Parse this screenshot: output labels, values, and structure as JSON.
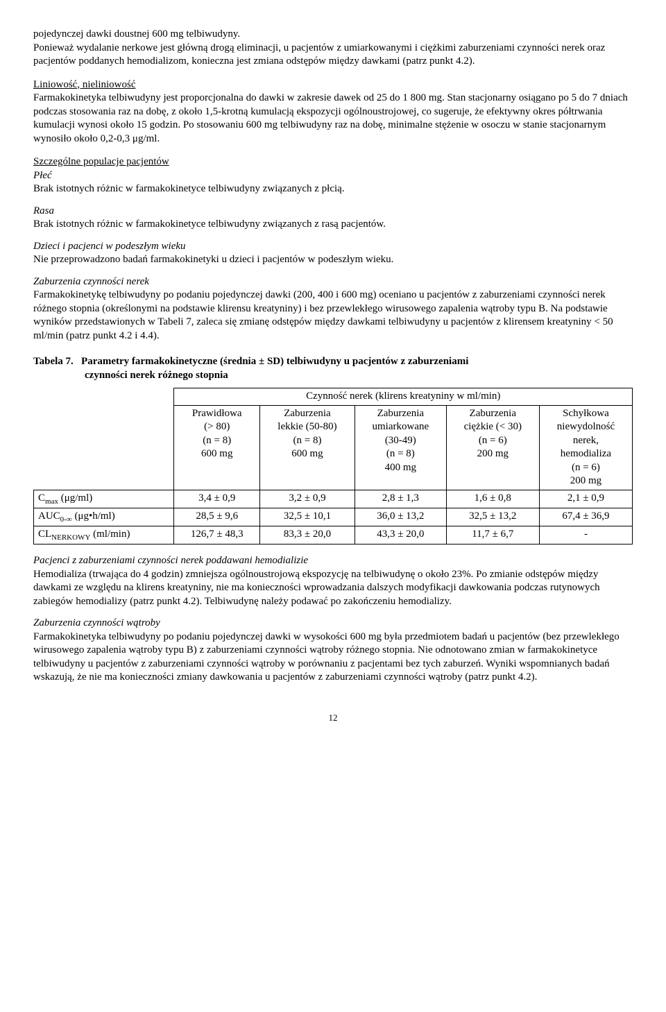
{
  "intro": {
    "line1": "pojedynczej dawki doustnej 600 mg telbiwudyny.",
    "line2": "Ponieważ wydalanie nerkowe jest główną drogą eliminacji, u pacjentów z umiarkowanymi i ciężkimi zaburzeniami czynności nerek oraz pacjentów poddanych hemodializom, konieczna jest zmiana odstępów między dawkami (patrz punkt 4.2)."
  },
  "linearity": {
    "heading": "Liniowość, nieliniowość",
    "body": "Farmakokinetyka telbiwudyny jest proporcjonalna do dawki w zakresie dawek od 25 do 1 800 mg. Stan stacjonarny osiągano po 5 do 7 dniach podczas stosowania raz na dobę, z około 1,5-krotną kumulacją ekspozycji ogólnoustrojowej, co sugeruje, że efektywny okres półtrwania kumulacji wynosi około 15 godzin. Po stosowaniu 600 mg telbiwudyny raz na dobę, minimalne stężenie w osoczu w stanie stacjonarnym wynosiło około 0,2-0,3 μg/ml."
  },
  "populations": {
    "heading": "Szczególne populacje pacjentów",
    "sex_label": "Płeć",
    "sex_body": "Brak istotnych różnic w farmakokinetyce telbiwudyny związanych z płcią.",
    "race_label": "Rasa",
    "race_body": "Brak istotnych różnic w farmakokinetyce telbiwudyny związanych z rasą pacjentów.",
    "age_label": "Dzieci i pacjenci w podeszłym wieku",
    "age_body": "Nie przeprowadzono badań farmakokinetyki u dzieci i pacjentów w podeszłym wieku.",
    "renal_label": "Zaburzenia czynności nerek",
    "renal_body": "Farmakokinetykę telbiwudyny po podaniu pojedynczej dawki (200, 400 i 600 mg) oceniano u pacjentów z zaburzeniami czynności nerek różnego stopnia (określonymi na podstawie klirensu kreatyniny) i bez przewlekłego wirusowego zapalenia wątroby typu B. Na podstawie wyników przedstawionych w Tabeli 7, zaleca się zmianę odstępów między dawkami telbiwudyny u pacjentów z klirensem kreatyniny < 50 ml/min (patrz punkt 4.2 i 4.4)."
  },
  "table": {
    "title_lead": "Tabela 7.",
    "title_main": "Parametry farmakokinetyczne (średnia ± SD) telbiwudyny u pacjentów z zaburzeniami",
    "title_cont": "czynności nerek różnego stopnia",
    "header_span": "Czynność nerek (klirens kreatyniny w ml/min)",
    "cols": [
      {
        "l1": "Prawidłowa",
        "l2": "(> 80)",
        "l3": "(n = 8)",
        "l4": "600 mg"
      },
      {
        "l1": "Zaburzenia",
        "l2": "lekkie (50-80)",
        "l3": "(n = 8)",
        "l4": "600 mg"
      },
      {
        "l1": "Zaburzenia",
        "l2": "umiarkowane",
        "l3": "(30-49)",
        "l4": "(n = 8)",
        "l5": "400 mg"
      },
      {
        "l1": "Zaburzenia",
        "l2": "ciężkie (< 30)",
        "l3": "(n = 6)",
        "l4": "200 mg"
      },
      {
        "l1": "Schyłkowa",
        "l2": "niewydolność",
        "l3": "nerek,",
        "l4": "hemodializa",
        "l5": "(n = 6)",
        "l6": "200 mg"
      }
    ],
    "rows": [
      {
        "label_html": "C<span class=\"sub\">max</span> (μg/ml)",
        "cells": [
          "3,4 ± 0,9",
          "3,2 ± 0,9",
          "2,8 ± 1,3",
          "1,6 ± 0,8",
          "2,1 ± 0,9"
        ]
      },
      {
        "label_html": "AUC<span class=\"sub\">0-∞</span> (μg•h/ml)",
        "cells": [
          "28,5 ± 9,6",
          "32,5 ± 10,1",
          "36,0 ± 13,2",
          "32,5 ± 13,2",
          "67,4 ± 36,9"
        ]
      },
      {
        "label_html": "CL<span class=\"sub\">NERKOWY</span> (ml/min)",
        "cells": [
          "126,7 ± 48,3",
          "83,3 ± 20,0",
          "43,3 ± 20,0",
          "11,7 ± 6,7",
          "-"
        ]
      }
    ]
  },
  "post": {
    "hemo_label": "Pacjenci z zaburzeniami czynności nerek poddawani hemodializie",
    "hemo_body": "Hemodializa (trwająca do 4 godzin) zmniejsza ogólnoustrojową ekspozycję na telbiwudynę o około 23%. Po zmianie odstępów między dawkami ze względu na klirens kreatyniny, nie ma konieczności wprowadzania dalszych modyfikacji dawkowania podczas rutynowych zabiegów hemodializy (patrz punkt 4.2). Telbiwudynę należy podawać po zakończeniu hemodializy.",
    "liver_label": "Zaburzenia czynności wątroby",
    "liver_body": "Farmakokinetyka telbiwudyny po podaniu pojedynczej dawki w wysokości 600 mg była przedmiotem badań u pacjentów (bez przewlekłego wirusowego zapalenia wątroby typu B) z zaburzeniami czynności wątroby różnego stopnia. Nie odnotowano zmian w farmakokinetyce telbiwudyny u pacjentów z zaburzeniami czynności wątroby w porównaniu z pacjentami bez tych zaburzeń. Wyniki wspomnianych badań wskazują, że nie ma konieczności zmiany dawkowania u pacjentów z zaburzeniami czynności wątroby (patrz punkt 4.2)."
  },
  "page_number": "12"
}
